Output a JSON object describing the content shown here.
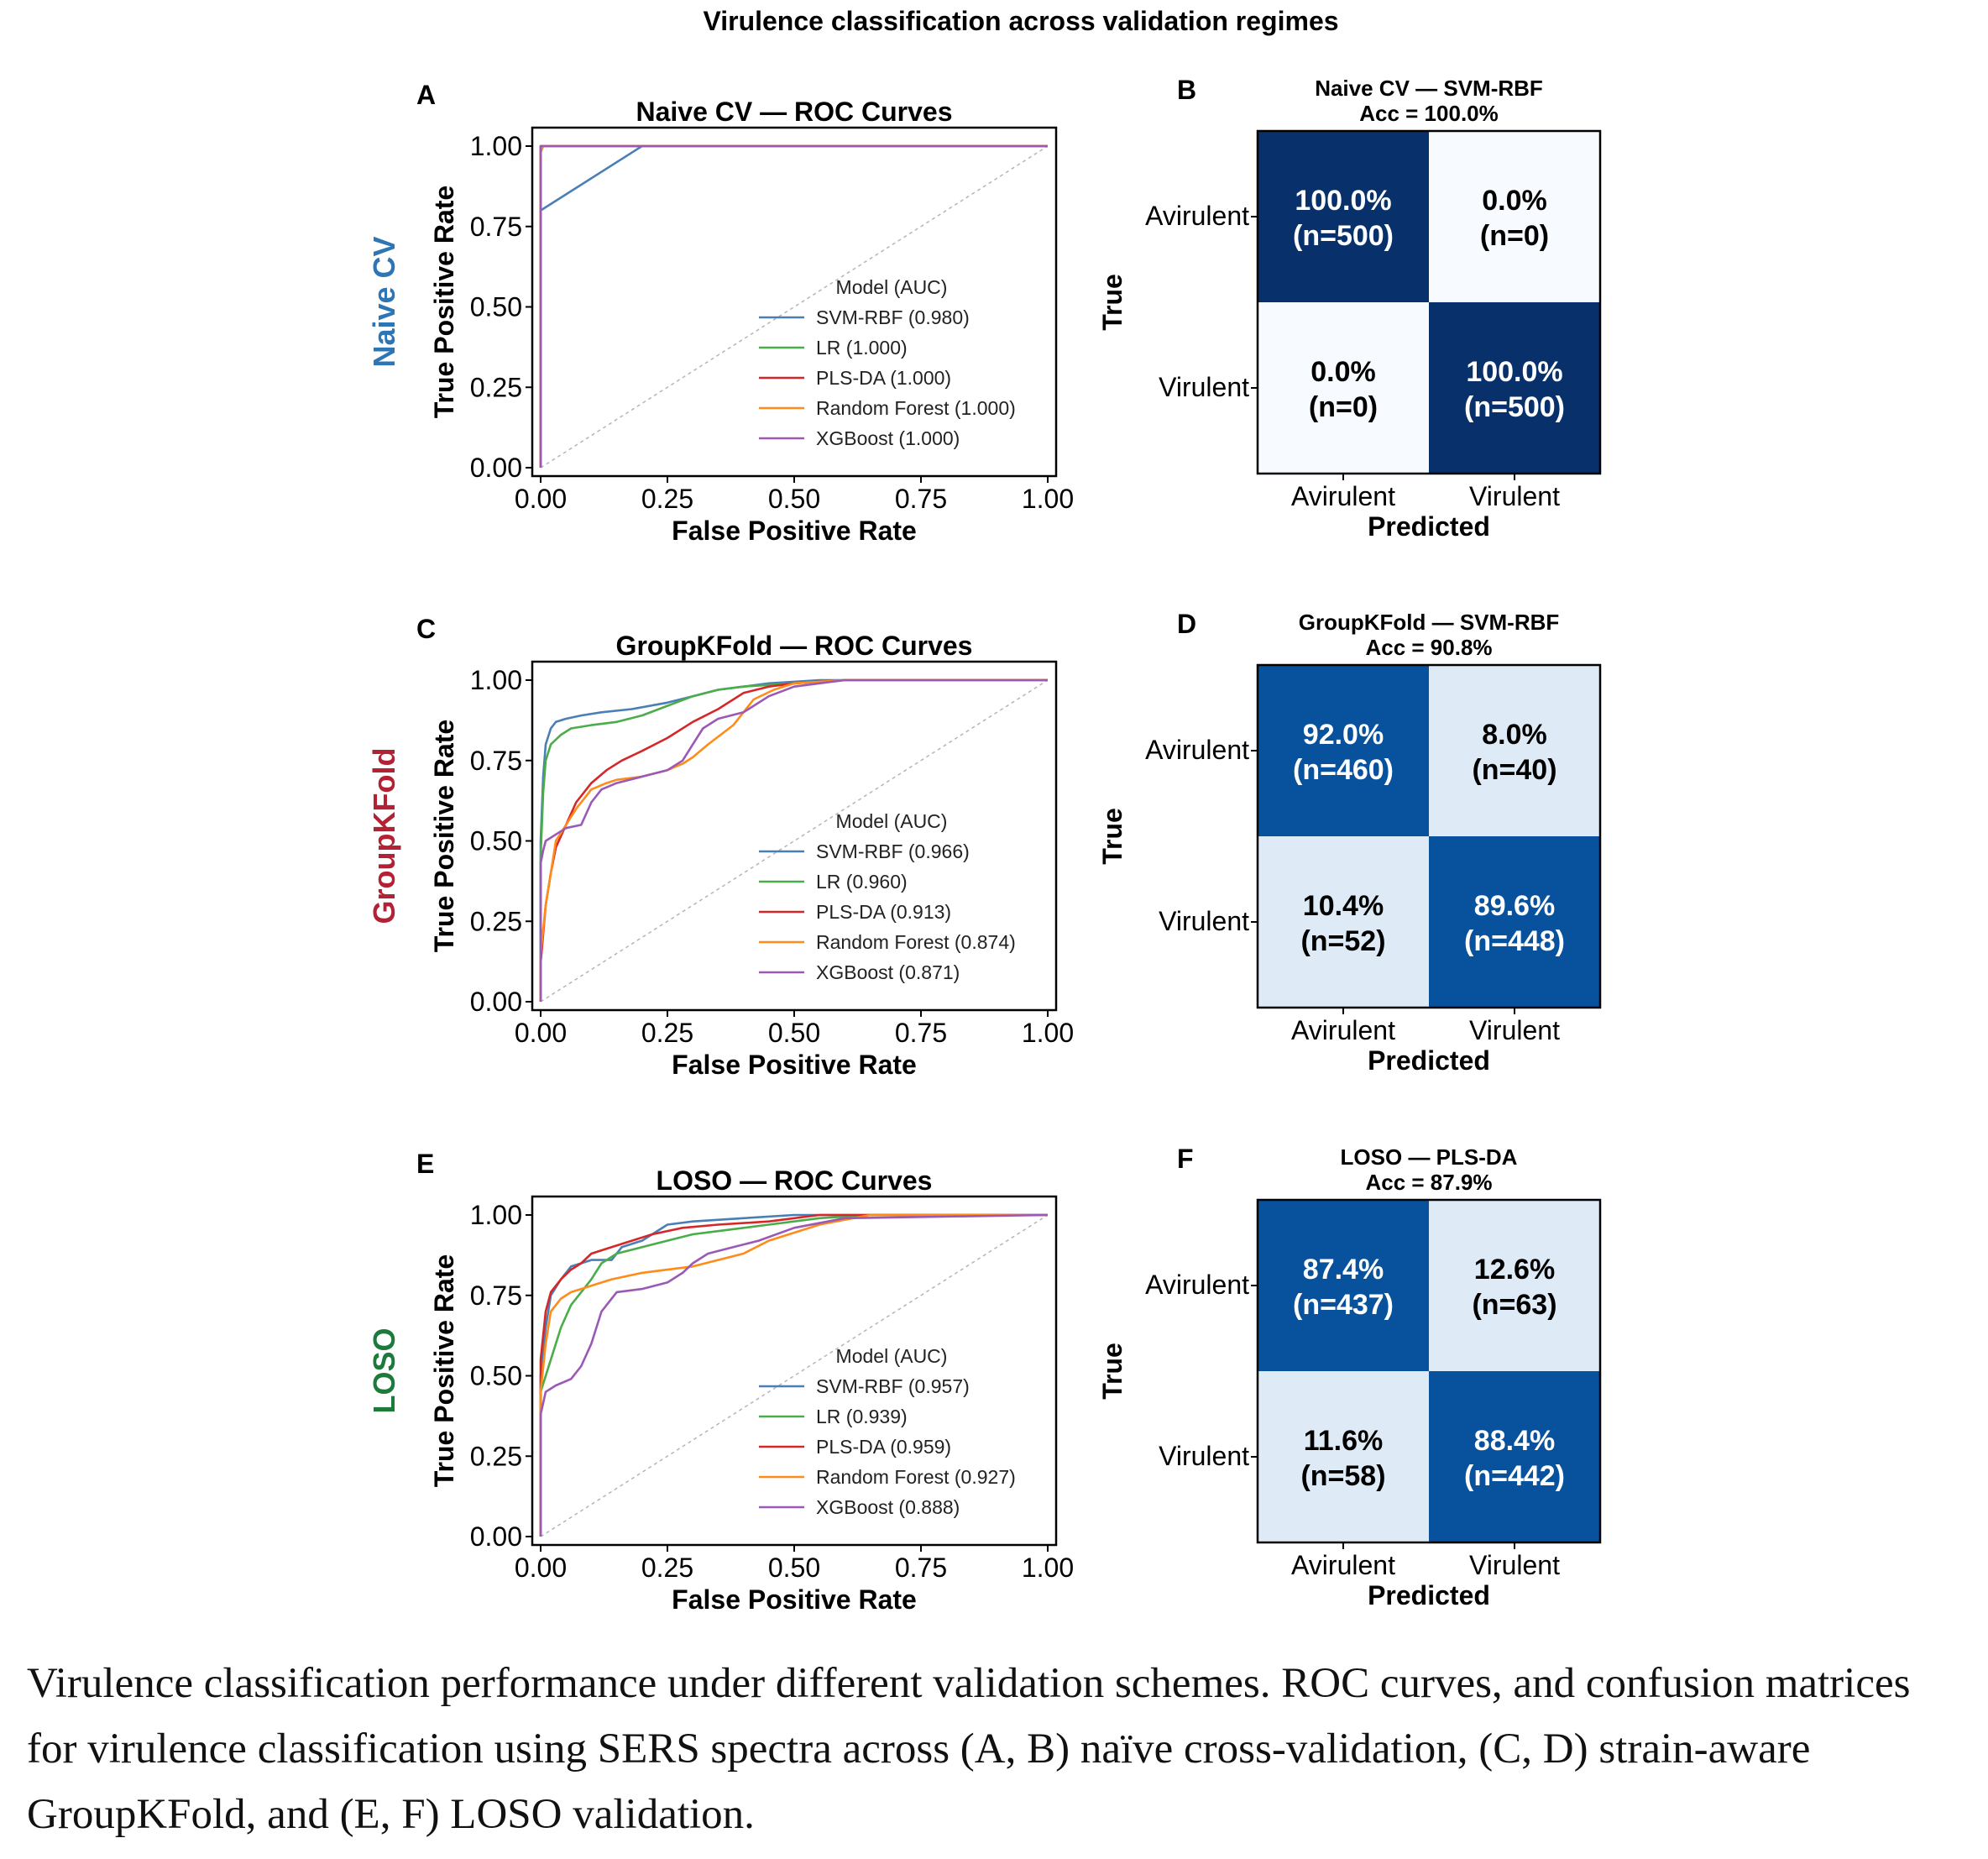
{
  "figure": {
    "title": "Virulence classification across validation regimes",
    "caption": "Virulence classification performance under different validation schemes. ROC curves, and confusion matrices for virulence classification using SERS spectra across (A, B) naïve cross-validation, (C, D) strain-aware GroupKFold, and (E, F) LOSO validation."
  },
  "colors": {
    "svm_rbf": "#4a7fb5",
    "lr": "#4aad4a",
    "pls_da": "#d62728",
    "random_forest": "#ff8c1a",
    "xgboost": "#9b59b6",
    "row_naive": "#2e75b6",
    "row_groupkfold": "#b22234",
    "row_loso": "#1e7a3c",
    "cm_dark": "#08306b",
    "cm_mid": "#08519c",
    "cm_light": "#deebf7",
    "cm_white": "#f7fbff"
  },
  "chart_data": [
    {
      "type": "line",
      "panel": "A",
      "row_label": "Naive CV",
      "title": "Naive CV — ROC Curves",
      "xlabel": "False Positive Rate",
      "ylabel": "True Positive Rate",
      "xlim": [
        0,
        1
      ],
      "ylim": [
        0,
        1
      ],
      "xticks": [
        "0.00",
        "0.25",
        "0.50",
        "0.75",
        "1.00"
      ],
      "yticks": [
        "0.00",
        "0.25",
        "0.50",
        "0.75",
        "1.00"
      ],
      "legend_title": "Model (AUC)",
      "legend_position": "lower right",
      "diagonal": true,
      "series": [
        {
          "name": "SVM-RBF (0.980)",
          "color_key": "svm_rbf",
          "x": [
            0,
            0,
            0.2,
            1
          ],
          "y": [
            0,
            0.8,
            1,
            1
          ]
        },
        {
          "name": "LR (1.000)",
          "color_key": "lr",
          "x": [
            0,
            0,
            1
          ],
          "y": [
            0,
            1,
            1
          ]
        },
        {
          "name": "PLS-DA (1.000)",
          "color_key": "pls_da",
          "x": [
            0,
            0,
            1
          ],
          "y": [
            0,
            1,
            1
          ]
        },
        {
          "name": "Random Forest (1.000)",
          "color_key": "random_forest",
          "x": [
            0,
            0,
            0.005,
            1
          ],
          "y": [
            0,
            0.98,
            1,
            1
          ]
        },
        {
          "name": "XGBoost (1.000)",
          "color_key": "xgboost",
          "x": [
            0,
            0,
            1
          ],
          "y": [
            0,
            1,
            1
          ]
        }
      ]
    },
    {
      "type": "heatmap",
      "panel": "B",
      "title": "Naive CV — SVM-RBF",
      "subtitle": "Acc = 100.0%",
      "xlabel": "Predicted",
      "ylabel": "True",
      "row_labels": [
        "Avirulent",
        "Virulent"
      ],
      "col_labels": [
        "Avirulent",
        "Virulent"
      ],
      "cells": [
        [
          {
            "pct": "100.0%",
            "n": "(n=500)",
            "value": 1.0,
            "fill_key": "cm_dark",
            "text_color": "#ffffff"
          },
          {
            "pct": "0.0%",
            "n": "(n=0)",
            "value": 0.0,
            "fill_key": "cm_white",
            "text_color": "#000000"
          }
        ],
        [
          {
            "pct": "0.0%",
            "n": "(n=0)",
            "value": 0.0,
            "fill_key": "cm_white",
            "text_color": "#000000"
          },
          {
            "pct": "100.0%",
            "n": "(n=500)",
            "value": 1.0,
            "fill_key": "cm_dark",
            "text_color": "#ffffff"
          }
        ]
      ]
    },
    {
      "type": "line",
      "panel": "C",
      "row_label": "GroupKFold",
      "title": "GroupKFold — ROC Curves",
      "xlabel": "False Positive Rate",
      "ylabel": "True Positive Rate",
      "xlim": [
        0,
        1
      ],
      "ylim": [
        0,
        1
      ],
      "xticks": [
        "0.00",
        "0.25",
        "0.50",
        "0.75",
        "1.00"
      ],
      "yticks": [
        "0.00",
        "0.25",
        "0.50",
        "0.75",
        "1.00"
      ],
      "legend_title": "Model (AUC)",
      "legend_position": "lower right",
      "diagonal": true,
      "series": [
        {
          "name": "SVM-RBF (0.966)",
          "color_key": "svm_rbf",
          "x": [
            0,
            0,
            0.005,
            0.01,
            0.02,
            0.03,
            0.05,
            0.08,
            0.12,
            0.18,
            0.25,
            0.3,
            0.35,
            0.4,
            0.45,
            0.55,
            1
          ],
          "y": [
            0,
            0.5,
            0.7,
            0.8,
            0.85,
            0.87,
            0.88,
            0.89,
            0.9,
            0.91,
            0.93,
            0.95,
            0.97,
            0.98,
            0.99,
            1,
            1
          ]
        },
        {
          "name": "LR (0.960)",
          "color_key": "lr",
          "x": [
            0,
            0,
            0.005,
            0.01,
            0.02,
            0.04,
            0.06,
            0.1,
            0.15,
            0.2,
            0.25,
            0.3,
            0.35,
            0.4,
            0.5,
            0.6,
            1
          ],
          "y": [
            0,
            0.45,
            0.65,
            0.75,
            0.8,
            0.83,
            0.85,
            0.86,
            0.87,
            0.89,
            0.92,
            0.95,
            0.97,
            0.98,
            0.99,
            1,
            1
          ]
        },
        {
          "name": "PLS-DA (0.913)",
          "color_key": "pls_da",
          "x": [
            0,
            0,
            0.01,
            0.02,
            0.03,
            0.05,
            0.07,
            0.1,
            0.13,
            0.16,
            0.2,
            0.25,
            0.3,
            0.35,
            0.4,
            0.45,
            0.5,
            0.6,
            1
          ],
          "y": [
            0,
            0.12,
            0.3,
            0.4,
            0.48,
            0.55,
            0.62,
            0.68,
            0.72,
            0.75,
            0.78,
            0.82,
            0.87,
            0.91,
            0.96,
            0.98,
            0.99,
            1,
            1
          ]
        },
        {
          "name": "Random Forest (0.874)",
          "color_key": "random_forest",
          "x": [
            0,
            0,
            0.01,
            0.02,
            0.03,
            0.05,
            0.07,
            0.1,
            0.13,
            0.15,
            0.2,
            0.25,
            0.28,
            0.3,
            0.33,
            0.38,
            0.42,
            0.46,
            0.5,
            0.6,
            1
          ],
          "y": [
            0,
            0.15,
            0.3,
            0.4,
            0.5,
            0.55,
            0.6,
            0.66,
            0.68,
            0.69,
            0.7,
            0.72,
            0.74,
            0.76,
            0.8,
            0.86,
            0.94,
            0.97,
            0.99,
            1,
            1
          ]
        },
        {
          "name": "XGBoost (0.871)",
          "color_key": "xgboost",
          "x": [
            0,
            0,
            0.005,
            0.01,
            0.03,
            0.05,
            0.08,
            0.1,
            0.12,
            0.15,
            0.2,
            0.25,
            0.28,
            0.3,
            0.32,
            0.35,
            0.4,
            0.45,
            0.5,
            0.6,
            1
          ],
          "y": [
            0,
            0.43,
            0.47,
            0.5,
            0.52,
            0.54,
            0.55,
            0.62,
            0.66,
            0.68,
            0.7,
            0.72,
            0.75,
            0.8,
            0.85,
            0.88,
            0.9,
            0.95,
            0.98,
            1,
            1
          ]
        }
      ]
    },
    {
      "type": "heatmap",
      "panel": "D",
      "title": "GroupKFold — SVM-RBF",
      "subtitle": "Acc = 90.8%",
      "xlabel": "Predicted",
      "ylabel": "True",
      "row_labels": [
        "Avirulent",
        "Virulent"
      ],
      "col_labels": [
        "Avirulent",
        "Virulent"
      ],
      "cells": [
        [
          {
            "pct": "92.0%",
            "n": "(n=460)",
            "value": 0.92,
            "fill_key": "cm_mid",
            "text_color": "#ffffff"
          },
          {
            "pct": "8.0%",
            "n": "(n=40)",
            "value": 0.08,
            "fill_key": "cm_light",
            "text_color": "#000000"
          }
        ],
        [
          {
            "pct": "10.4%",
            "n": "(n=52)",
            "value": 0.104,
            "fill_key": "cm_light",
            "text_color": "#000000"
          },
          {
            "pct": "89.6%",
            "n": "(n=448)",
            "value": 0.896,
            "fill_key": "cm_mid",
            "text_color": "#ffffff"
          }
        ]
      ]
    },
    {
      "type": "line",
      "panel": "E",
      "row_label": "LOSO",
      "title": "LOSO — ROC Curves",
      "xlabel": "False Positive Rate",
      "ylabel": "True Positive Rate",
      "xlim": [
        0,
        1
      ],
      "ylim": [
        0,
        1
      ],
      "xticks": [
        "0.00",
        "0.25",
        "0.50",
        "0.75",
        "1.00"
      ],
      "yticks": [
        "0.00",
        "0.25",
        "0.50",
        "0.75",
        "1.00"
      ],
      "legend_title": "Model (AUC)",
      "legend_position": "lower right",
      "diagonal": true,
      "series": [
        {
          "name": "SVM-RBF (0.957)",
          "color_key": "svm_rbf",
          "x": [
            0,
            0,
            0.01,
            0.02,
            0.04,
            0.06,
            0.08,
            0.1,
            0.14,
            0.16,
            0.2,
            0.25,
            0.3,
            0.4,
            0.5,
            0.6,
            1
          ],
          "y": [
            0,
            0.5,
            0.65,
            0.75,
            0.8,
            0.84,
            0.85,
            0.86,
            0.86,
            0.9,
            0.92,
            0.97,
            0.98,
            0.99,
            1,
            1,
            1
          ]
        },
        {
          "name": "LR (0.939)",
          "color_key": "lr",
          "x": [
            0,
            0,
            0.02,
            0.04,
            0.06,
            0.08,
            0.1,
            0.12,
            0.15,
            0.2,
            0.25,
            0.3,
            0.35,
            0.45,
            0.55,
            0.65,
            1
          ],
          "y": [
            0,
            0.45,
            0.55,
            0.65,
            0.72,
            0.76,
            0.8,
            0.85,
            0.88,
            0.9,
            0.92,
            0.94,
            0.95,
            0.97,
            0.99,
            1,
            1
          ]
        },
        {
          "name": "PLS-DA (0.959)",
          "color_key": "pls_da",
          "x": [
            0,
            0,
            0.01,
            0.02,
            0.04,
            0.06,
            0.08,
            0.1,
            0.14,
            0.18,
            0.22,
            0.28,
            0.35,
            0.45,
            0.55,
            1
          ],
          "y": [
            0,
            0.55,
            0.7,
            0.76,
            0.8,
            0.83,
            0.85,
            0.88,
            0.9,
            0.92,
            0.94,
            0.96,
            0.97,
            0.98,
            1,
            1
          ]
        },
        {
          "name": "Random Forest (0.927)",
          "color_key": "random_forest",
          "x": [
            0,
            0,
            0.01,
            0.02,
            0.04,
            0.06,
            0.08,
            0.1,
            0.14,
            0.2,
            0.25,
            0.3,
            0.35,
            0.4,
            0.45,
            0.55,
            0.65,
            1
          ],
          "y": [
            0,
            0.45,
            0.6,
            0.7,
            0.74,
            0.76,
            0.77,
            0.78,
            0.8,
            0.82,
            0.83,
            0.84,
            0.86,
            0.88,
            0.92,
            0.97,
            1,
            1
          ]
        },
        {
          "name": "XGBoost (0.888)",
          "color_key": "xgboost",
          "x": [
            0,
            0,
            0.01,
            0.03,
            0.06,
            0.08,
            0.1,
            0.12,
            0.15,
            0.2,
            0.25,
            0.28,
            0.3,
            0.33,
            0.38,
            0.43,
            0.5,
            0.6,
            1
          ],
          "y": [
            0,
            0.38,
            0.45,
            0.47,
            0.49,
            0.53,
            0.6,
            0.7,
            0.76,
            0.77,
            0.79,
            0.82,
            0.85,
            0.88,
            0.9,
            0.92,
            0.96,
            0.99,
            1
          ]
        }
      ]
    },
    {
      "type": "heatmap",
      "panel": "F",
      "title": "LOSO — PLS-DA",
      "subtitle": "Acc = 87.9%",
      "xlabel": "Predicted",
      "ylabel": "True",
      "row_labels": [
        "Avirulent",
        "Virulent"
      ],
      "col_labels": [
        "Avirulent",
        "Virulent"
      ],
      "cells": [
        [
          {
            "pct": "87.4%",
            "n": "(n=437)",
            "value": 0.874,
            "fill_key": "cm_mid",
            "text_color": "#ffffff"
          },
          {
            "pct": "12.6%",
            "n": "(n=63)",
            "value": 0.126,
            "fill_key": "cm_light",
            "text_color": "#000000"
          }
        ],
        [
          {
            "pct": "11.6%",
            "n": "(n=58)",
            "value": 0.116,
            "fill_key": "cm_light",
            "text_color": "#000000"
          },
          {
            "pct": "88.4%",
            "n": "(n=442)",
            "value": 0.884,
            "fill_key": "cm_mid",
            "text_color": "#ffffff"
          }
        ]
      ]
    }
  ]
}
